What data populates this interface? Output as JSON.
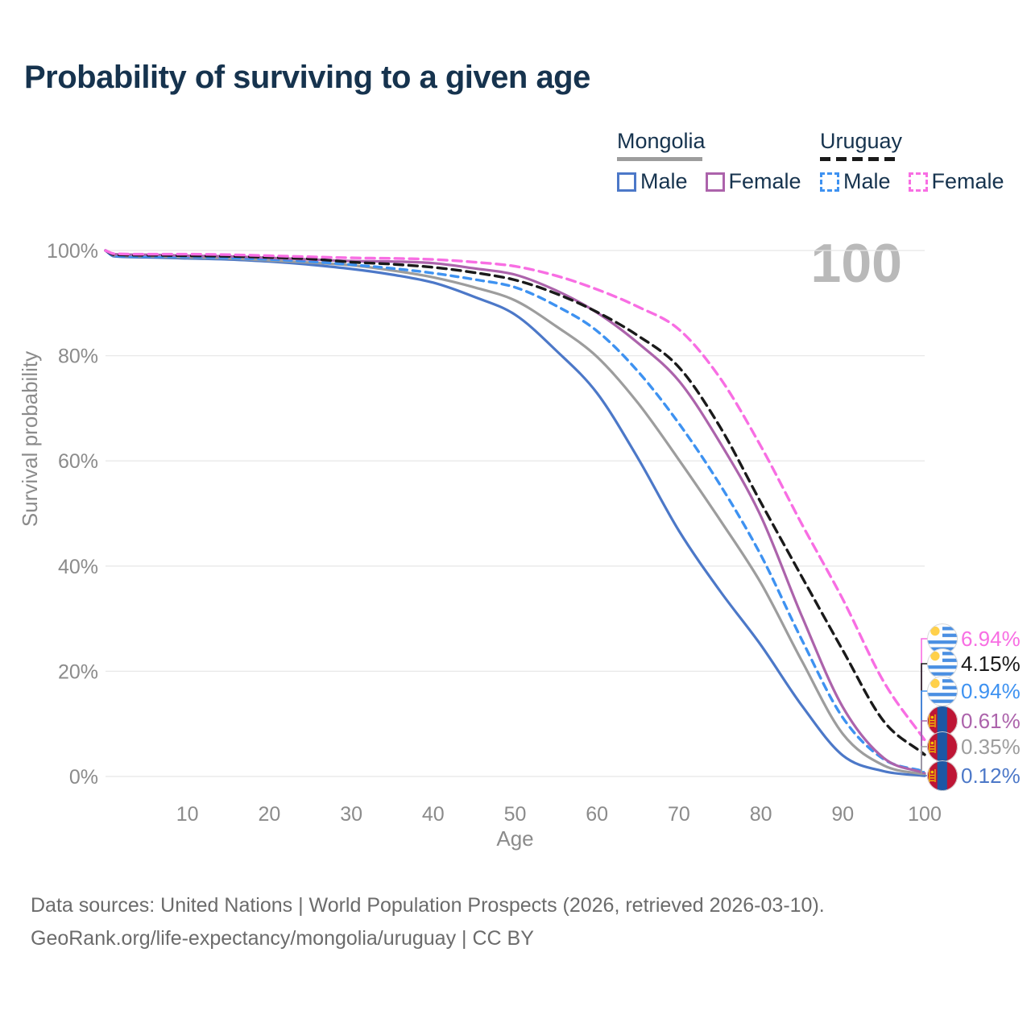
{
  "title": "Probability of surviving to a given age",
  "watermark": "100",
  "legend": {
    "groups": [
      {
        "id": "mongolia",
        "label": "Mongolia",
        "line_style": "solid",
        "line_color": "#9D9D9D",
        "items": [
          {
            "label": "Male",
            "color": "#4C78C8",
            "dashed": false
          },
          {
            "label": "Female",
            "color": "#AC63AB",
            "dashed": false
          }
        ]
      },
      {
        "id": "uruguay",
        "label": "Uruguay",
        "line_style": "dashed",
        "line_color": "#1A1A1A",
        "items": [
          {
            "label": "Male",
            "color": "#3E92F1",
            "dashed": true
          },
          {
            "label": "Female",
            "color": "#F86EE3",
            "dashed": true
          }
        ]
      }
    ]
  },
  "chart_data": {
    "type": "line",
    "title": "Probability of surviving to a given age",
    "xlabel": "Age",
    "ylabel": "Survival probability",
    "x_range": [
      0,
      100
    ],
    "y_range": [
      0,
      100
    ],
    "grid": true,
    "x_ticks": [
      10,
      20,
      30,
      40,
      50,
      60,
      70,
      80,
      90,
      100
    ],
    "y_ticks": [
      {
        "value": 0,
        "label": "0%"
      },
      {
        "value": 20,
        "label": "20%"
      },
      {
        "value": 40,
        "label": "40%"
      },
      {
        "value": 60,
        "label": "60%"
      },
      {
        "value": 80,
        "label": "80%"
      },
      {
        "value": 100,
        "label": "100%"
      }
    ],
    "ages": [
      0,
      1,
      5,
      10,
      15,
      20,
      25,
      30,
      35,
      40,
      45,
      50,
      55,
      60,
      65,
      70,
      75,
      80,
      85,
      90,
      95,
      100
    ],
    "series": [
      {
        "id": "mongolia-male",
        "name": "Mongolia Male",
        "country": "Mongolia",
        "sex": "Male",
        "color": "#4C78C8",
        "dashed": false,
        "flag": "mongolia",
        "end_label": "0.12%",
        "values": [
          100,
          98.9,
          98.7,
          98.5,
          98.3,
          97.9,
          97.3,
          96.5,
          95.4,
          93.9,
          91.2,
          87.8,
          81.0,
          72.9,
          60.5,
          46.7,
          35.3,
          25.0,
          13.5,
          4.0,
          1.0,
          0.12
        ]
      },
      {
        "id": "mongolia-both",
        "name": "Mongolia",
        "country": "Mongolia",
        "sex": "Both sexes",
        "color": "#9D9D9D",
        "dashed": false,
        "flag": "mongolia",
        "end_label": "0.35%",
        "values": [
          100,
          99.1,
          98.9,
          98.7,
          98.5,
          98.1,
          97.7,
          97.2,
          96.2,
          94.9,
          93.0,
          90.5,
          85.6,
          79.8,
          71.0,
          60.2,
          48.8,
          36.8,
          22.0,
          8.1,
          2.1,
          0.35
        ]
      },
      {
        "id": "uruguay-male",
        "name": "Uruguay Male",
        "country": "Uruguay",
        "sex": "Male",
        "color": "#3E92F1",
        "dashed": true,
        "flag": "uruguay",
        "end_label": "0.94%",
        "values": [
          100,
          99.0,
          98.9,
          98.8,
          98.6,
          98.3,
          97.9,
          97.3,
          96.6,
          95.7,
          94.5,
          93.0,
          89.5,
          84.7,
          77.0,
          67.1,
          55.5,
          42.1,
          26.0,
          11.2,
          3.3,
          0.94
        ]
      },
      {
        "id": "mongolia-female",
        "name": "Mongolia Female",
        "country": "Mongolia",
        "sex": "Female",
        "color": "#AC63AB",
        "dashed": false,
        "flag": "mongolia",
        "end_label": "0.61%",
        "values": [
          100,
          99.3,
          99.2,
          99.0,
          98.9,
          98.6,
          98.3,
          98.0,
          97.9,
          97.6,
          96.6,
          95.4,
          92.4,
          88.2,
          82.4,
          75.2,
          63.5,
          49.5,
          30.5,
          13.2,
          3.5,
          0.61
        ]
      },
      {
        "id": "uruguay-both",
        "name": "Uruguay",
        "country": "Uruguay",
        "sex": "Both sexes",
        "color": "#1A1A1A",
        "dashed": true,
        "flag": "uruguay",
        "end_label": "4.15%",
        "values": [
          100,
          99.2,
          99.1,
          99.0,
          98.9,
          98.7,
          98.4,
          97.8,
          97.4,
          96.8,
          95.8,
          94.4,
          91.8,
          88.3,
          83.8,
          77.8,
          66.5,
          52.1,
          38.0,
          24.0,
          10.5,
          4.15
        ]
      },
      {
        "id": "uruguay-female",
        "name": "Uruguay Female",
        "country": "Uruguay",
        "sex": "Female",
        "color": "#F86EE3",
        "dashed": true,
        "flag": "uruguay",
        "end_label": "6.94%",
        "values": [
          100,
          99.4,
          99.3,
          99.3,
          99.2,
          99.0,
          98.8,
          98.6,
          98.5,
          98.3,
          97.8,
          97.0,
          95.2,
          92.6,
          89.3,
          85.0,
          75.8,
          62.8,
          48.0,
          33.7,
          18.0,
          6.94
        ]
      }
    ]
  },
  "footer": {
    "line1": "Data sources: United Nations | World Population Prospects (2026, retrieved 2026-03-10).",
    "line2": "GeoRank.org/life-expectancy/mongolia/uruguay | CC BY"
  }
}
